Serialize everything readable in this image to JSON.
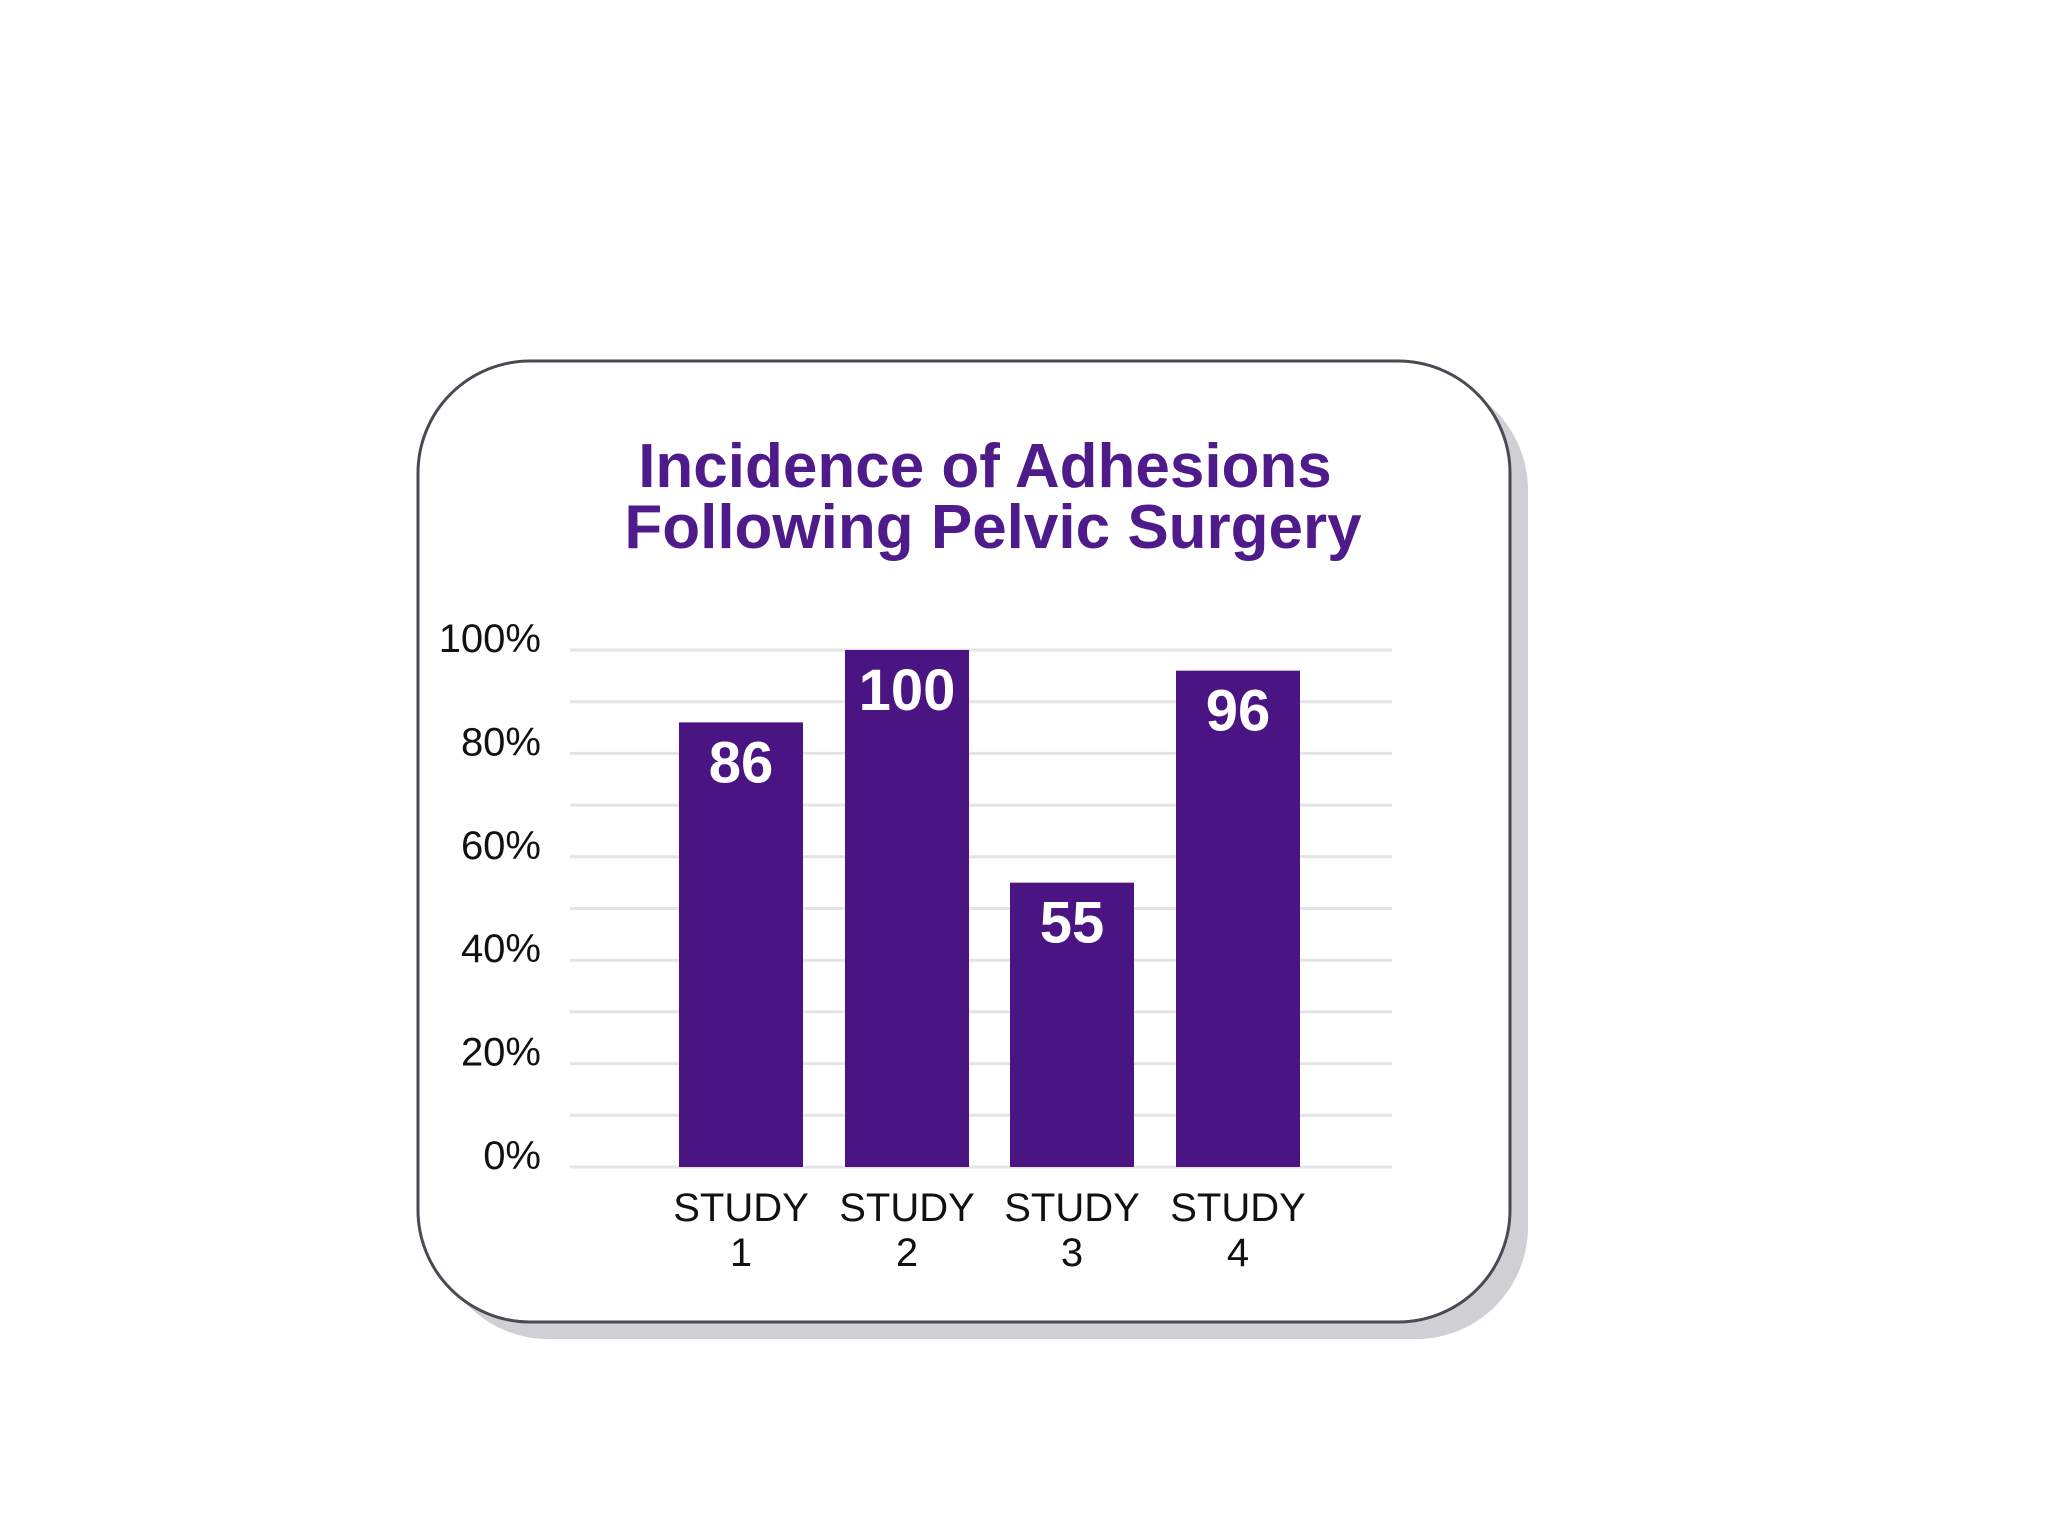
{
  "chart_data": {
    "type": "bar",
    "title_lines": [
      "Incidence of Adhesions",
      "Following Pelvic Surgery"
    ],
    "categories": [
      "STUDY 1",
      "STUDY 2",
      "STUDY 3",
      "STUDY 4"
    ],
    "category_lines": [
      [
        "STUDY",
        "1"
      ],
      [
        "STUDY",
        "2"
      ],
      [
        "STUDY",
        "3"
      ],
      [
        "STUDY",
        "4"
      ]
    ],
    "values": [
      86,
      100,
      55,
      96
    ],
    "value_labels": [
      "86",
      "100",
      "55",
      "96"
    ],
    "ylim": [
      0,
      100
    ],
    "yticks": [
      "0%",
      "20%",
      "40%",
      "60%",
      "80%",
      "100%"
    ],
    "ytick_values": [
      0,
      20,
      40,
      60,
      80,
      100
    ],
    "grid": true,
    "colors": {
      "bar": "#4a1482",
      "title": "#4f1a8a",
      "gridline": "#e4e4e8",
      "frame": "#4a4a52",
      "shadow": "#cfcfd4"
    }
  }
}
